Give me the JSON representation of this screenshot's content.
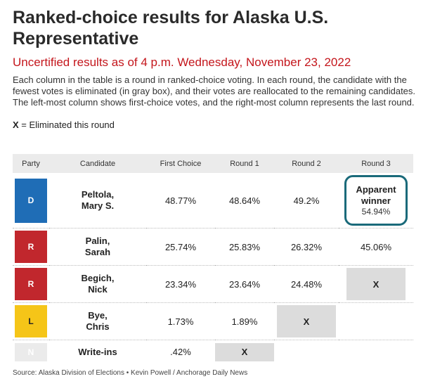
{
  "title": "Ranked-choice results for Alaska U.S. Representative",
  "subtitle": "Uncertified results as of 4 p.m. Wednesday, November 23, 2022",
  "description": "Each column in the table is a round in ranked-choice voting. In each round, the candidate with the fewest votes is eliminated (in gray box), and their votes are reallocated to the remaining candidates. The left-most column shows first-choice votes, and the right-most column represents the last round.",
  "legend": {
    "marker": "X",
    "text": " = Eliminated this round"
  },
  "table": {
    "headers": [
      "Party",
      "Candidate",
      "First Choice",
      "Round 1",
      "Round 2",
      "Round 3"
    ],
    "rows": [
      {
        "party": "D",
        "party_color": "#1f6db6",
        "name_line1": "Peltola,",
        "name_line2": "Mary S.",
        "first_choice": "48.77%",
        "round1": "48.64%",
        "round2": "49.2%",
        "round3_label1": "Apparent",
        "round3_label2": "winner",
        "round3": "54.94%"
      },
      {
        "party": "R",
        "party_color": "#c1272d",
        "name_line1": "Palin,",
        "name_line2": "Sarah",
        "first_choice": "25.74%",
        "round1": "25.83%",
        "round2": "26.32%",
        "round3": "45.06%"
      },
      {
        "party": "R",
        "party_color": "#c1272d",
        "name_line1": "Begich,",
        "name_line2": "Nick",
        "first_choice": "23.34%",
        "round1": "23.64%",
        "round2": "24.48%",
        "round3": "X"
      },
      {
        "party": "L",
        "party_color": "#f5c518",
        "name_line1": "Bye,",
        "name_line2": "Chris",
        "first_choice": "1.73%",
        "round1": "1.89%",
        "round2": "X",
        "round3": ""
      },
      {
        "party": "N",
        "party_color": "#ebebeb",
        "name_line1": "Write-ins",
        "first_choice": ".42%",
        "round1": "X",
        "round2": "",
        "round3": ""
      }
    ]
  },
  "source": "Source: Alaska Division of Elections • Kevin Powell / Anchorage Daily News"
}
